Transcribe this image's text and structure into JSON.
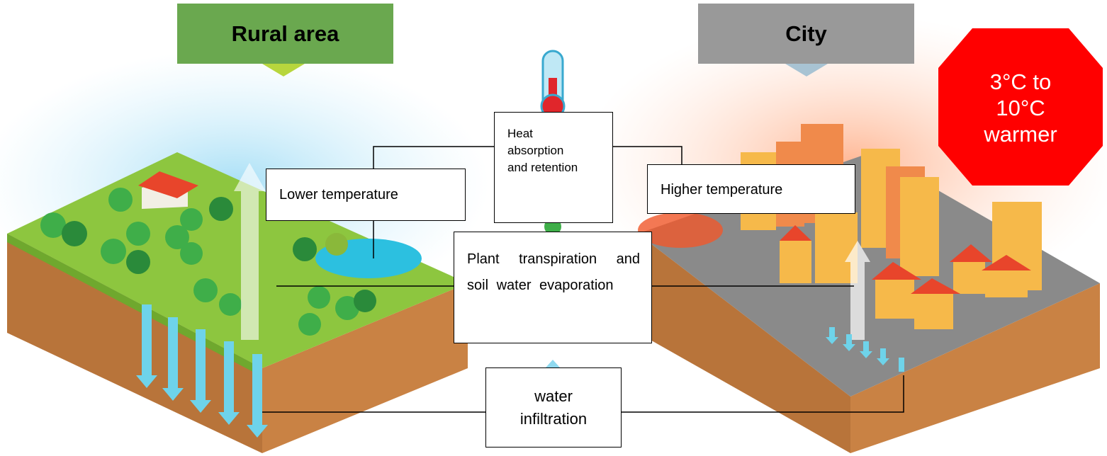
{
  "banners": {
    "rural": "Rural area",
    "city": "City"
  },
  "badge": "3°C to 10°C warmer",
  "boxes": {
    "heat": "Heat absorption and retention",
    "lower": "Lower temperature",
    "higher": "Higher temperature",
    "evaporation": "Plant transpiration and soil water evaporation",
    "infiltration": "water infiltration"
  }
}
